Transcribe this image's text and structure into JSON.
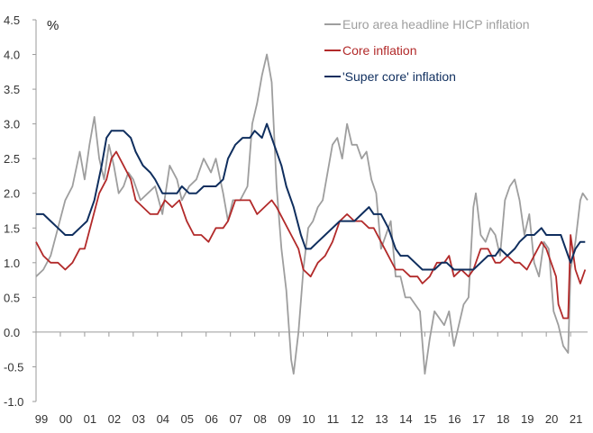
{
  "chart_data": {
    "type": "line",
    "unit_label": "%",
    "ylim": [
      -1.0,
      4.5
    ],
    "xlim": [
      1999.0,
      2021.7
    ],
    "y_ticks": [
      "4.5",
      "4.0",
      "3.5",
      "3.0",
      "2.5",
      "2.0",
      "1.5",
      "1.0",
      "0.5",
      "0.0",
      "-0.5",
      "-1.0"
    ],
    "x_ticks": [
      "99",
      "00",
      "01",
      "02",
      "03",
      "04",
      "05",
      "06",
      "07",
      "08",
      "09",
      "10",
      "11",
      "12",
      "13",
      "14",
      "15",
      "16",
      "17",
      "18",
      "19",
      "20",
      "21"
    ],
    "grid": false,
    "legend_position": "top-right",
    "series": [
      {
        "name": "Euro area headline HICP inflation",
        "color": "#9e9e9e",
        "points": [
          [
            1999.0,
            0.8
          ],
          [
            1999.3,
            0.9
          ],
          [
            1999.6,
            1.1
          ],
          [
            1999.9,
            1.5
          ],
          [
            2000.2,
            1.9
          ],
          [
            2000.5,
            2.1
          ],
          [
            2000.8,
            2.6
          ],
          [
            2001.0,
            2.2
          ],
          [
            2001.2,
            2.7
          ],
          [
            2001.4,
            3.1
          ],
          [
            2001.6,
            2.5
          ],
          [
            2001.8,
            2.2
          ],
          [
            2002.0,
            2.7
          ],
          [
            2002.2,
            2.4
          ],
          [
            2002.4,
            2.0
          ],
          [
            2002.6,
            2.1
          ],
          [
            2002.8,
            2.3
          ],
          [
            2003.0,
            2.2
          ],
          [
            2003.3,
            1.9
          ],
          [
            2003.6,
            2.0
          ],
          [
            2003.9,
            2.1
          ],
          [
            2004.2,
            1.7
          ],
          [
            2004.5,
            2.4
          ],
          [
            2004.8,
            2.2
          ],
          [
            2005.0,
            1.9
          ],
          [
            2005.3,
            2.1
          ],
          [
            2005.6,
            2.2
          ],
          [
            2005.9,
            2.5
          ],
          [
            2006.2,
            2.3
          ],
          [
            2006.4,
            2.5
          ],
          [
            2006.7,
            2.0
          ],
          [
            2006.9,
            1.6
          ],
          [
            2007.1,
            1.9
          ],
          [
            2007.4,
            1.9
          ],
          [
            2007.7,
            2.1
          ],
          [
            2007.9,
            3.0
          ],
          [
            2008.1,
            3.3
          ],
          [
            2008.3,
            3.7
          ],
          [
            2008.5,
            4.0
          ],
          [
            2008.7,
            3.6
          ],
          [
            2008.9,
            2.1
          ],
          [
            2009.1,
            1.2
          ],
          [
            2009.3,
            0.6
          ],
          [
            2009.5,
            -0.4
          ],
          [
            2009.6,
            -0.6
          ],
          [
            2009.8,
            0.0
          ],
          [
            2010.0,
            0.9
          ],
          [
            2010.2,
            1.5
          ],
          [
            2010.4,
            1.6
          ],
          [
            2010.6,
            1.8
          ],
          [
            2010.8,
            1.9
          ],
          [
            2011.0,
            2.3
          ],
          [
            2011.2,
            2.7
          ],
          [
            2011.4,
            2.8
          ],
          [
            2011.6,
            2.5
          ],
          [
            2011.8,
            3.0
          ],
          [
            2012.0,
            2.7
          ],
          [
            2012.2,
            2.7
          ],
          [
            2012.4,
            2.5
          ],
          [
            2012.6,
            2.6
          ],
          [
            2012.8,
            2.2
          ],
          [
            2013.0,
            2.0
          ],
          [
            2013.2,
            1.2
          ],
          [
            2013.4,
            1.4
          ],
          [
            2013.6,
            1.6
          ],
          [
            2013.8,
            0.8
          ],
          [
            2014.0,
            0.8
          ],
          [
            2014.2,
            0.5
          ],
          [
            2014.4,
            0.5
          ],
          [
            2014.6,
            0.4
          ],
          [
            2014.8,
            0.3
          ],
          [
            2015.0,
            -0.6
          ],
          [
            2015.2,
            -0.1
          ],
          [
            2015.4,
            0.3
          ],
          [
            2015.6,
            0.2
          ],
          [
            2015.8,
            0.1
          ],
          [
            2016.0,
            0.3
          ],
          [
            2016.2,
            -0.2
          ],
          [
            2016.4,
            0.1
          ],
          [
            2016.6,
            0.4
          ],
          [
            2016.8,
            0.5
          ],
          [
            2017.0,
            1.8
          ],
          [
            2017.1,
            2.0
          ],
          [
            2017.3,
            1.4
          ],
          [
            2017.5,
            1.3
          ],
          [
            2017.7,
            1.5
          ],
          [
            2017.9,
            1.4
          ],
          [
            2018.1,
            1.1
          ],
          [
            2018.3,
            1.9
          ],
          [
            2018.5,
            2.1
          ],
          [
            2018.7,
            2.2
          ],
          [
            2018.9,
            1.9
          ],
          [
            2019.1,
            1.4
          ],
          [
            2019.3,
            1.7
          ],
          [
            2019.5,
            1.0
          ],
          [
            2019.7,
            0.8
          ],
          [
            2019.9,
            1.3
          ],
          [
            2020.1,
            1.2
          ],
          [
            2020.3,
            0.3
          ],
          [
            2020.5,
            0.1
          ],
          [
            2020.7,
            -0.2
          ],
          [
            2020.9,
            -0.3
          ],
          [
            2021.0,
            0.9
          ],
          [
            2021.2,
            1.3
          ],
          [
            2021.4,
            1.9
          ],
          [
            2021.5,
            2.0
          ],
          [
            2021.7,
            1.9
          ]
        ]
      },
      {
        "name": "Core inflation",
        "color": "#b22a2a",
        "points": [
          [
            1999.0,
            1.3
          ],
          [
            1999.3,
            1.1
          ],
          [
            1999.6,
            1.0
          ],
          [
            1999.9,
            1.0
          ],
          [
            2000.2,
            0.9
          ],
          [
            2000.5,
            1.0
          ],
          [
            2000.8,
            1.2
          ],
          [
            2001.0,
            1.2
          ],
          [
            2001.3,
            1.6
          ],
          [
            2001.6,
            2.0
          ],
          [
            2001.9,
            2.2
          ],
          [
            2002.1,
            2.5
          ],
          [
            2002.3,
            2.6
          ],
          [
            2002.6,
            2.4
          ],
          [
            2002.9,
            2.2
          ],
          [
            2003.1,
            1.9
          ],
          [
            2003.4,
            1.8
          ],
          [
            2003.7,
            1.7
          ],
          [
            2004.0,
            1.7
          ],
          [
            2004.3,
            1.9
          ],
          [
            2004.6,
            1.8
          ],
          [
            2004.9,
            1.9
          ],
          [
            2005.2,
            1.6
          ],
          [
            2005.5,
            1.4
          ],
          [
            2005.8,
            1.4
          ],
          [
            2006.1,
            1.3
          ],
          [
            2006.4,
            1.5
          ],
          [
            2006.7,
            1.5
          ],
          [
            2006.9,
            1.6
          ],
          [
            2007.2,
            1.9
          ],
          [
            2007.5,
            1.9
          ],
          [
            2007.8,
            1.9
          ],
          [
            2008.1,
            1.7
          ],
          [
            2008.4,
            1.8
          ],
          [
            2008.7,
            1.9
          ],
          [
            2008.9,
            1.8
          ],
          [
            2009.2,
            1.6
          ],
          [
            2009.5,
            1.4
          ],
          [
            2009.8,
            1.2
          ],
          [
            2010.0,
            0.9
          ],
          [
            2010.3,
            0.8
          ],
          [
            2010.6,
            1.0
          ],
          [
            2010.9,
            1.1
          ],
          [
            2011.2,
            1.3
          ],
          [
            2011.5,
            1.6
          ],
          [
            2011.8,
            1.7
          ],
          [
            2012.1,
            1.6
          ],
          [
            2012.4,
            1.6
          ],
          [
            2012.7,
            1.5
          ],
          [
            2012.9,
            1.5
          ],
          [
            2013.2,
            1.3
          ],
          [
            2013.5,
            1.1
          ],
          [
            2013.8,
            0.9
          ],
          [
            2014.1,
            0.9
          ],
          [
            2014.4,
            0.8
          ],
          [
            2014.7,
            0.8
          ],
          [
            2014.9,
            0.7
          ],
          [
            2015.2,
            0.8
          ],
          [
            2015.5,
            1.0
          ],
          [
            2015.8,
            1.0
          ],
          [
            2016.0,
            1.1
          ],
          [
            2016.2,
            0.8
          ],
          [
            2016.5,
            0.9
          ],
          [
            2016.8,
            0.8
          ],
          [
            2017.0,
            0.9
          ],
          [
            2017.3,
            1.2
          ],
          [
            2017.6,
            1.2
          ],
          [
            2017.9,
            1.0
          ],
          [
            2018.1,
            1.0
          ],
          [
            2018.4,
            1.1
          ],
          [
            2018.7,
            1.0
          ],
          [
            2018.9,
            1.0
          ],
          [
            2019.2,
            0.9
          ],
          [
            2019.5,
            1.1
          ],
          [
            2019.8,
            1.3
          ],
          [
            2020.0,
            1.2
          ],
          [
            2020.2,
            1.0
          ],
          [
            2020.4,
            0.8
          ],
          [
            2020.5,
            0.4
          ],
          [
            2020.7,
            0.2
          ],
          [
            2020.9,
            0.2
          ],
          [
            2021.0,
            1.4
          ],
          [
            2021.2,
            0.9
          ],
          [
            2021.4,
            0.7
          ],
          [
            2021.6,
            0.9
          ]
        ]
      },
      {
        "name": "'Super core' inflation",
        "color": "#0f2e5e",
        "points": [
          [
            1999.0,
            1.7
          ],
          [
            1999.3,
            1.7
          ],
          [
            1999.6,
            1.6
          ],
          [
            1999.9,
            1.5
          ],
          [
            2000.2,
            1.4
          ],
          [
            2000.5,
            1.4
          ],
          [
            2000.8,
            1.5
          ],
          [
            2001.1,
            1.6
          ],
          [
            2001.4,
            1.9
          ],
          [
            2001.7,
            2.4
          ],
          [
            2001.9,
            2.8
          ],
          [
            2002.1,
            2.9
          ],
          [
            2002.3,
            2.9
          ],
          [
            2002.6,
            2.9
          ],
          [
            2002.9,
            2.8
          ],
          [
            2003.1,
            2.6
          ],
          [
            2003.4,
            2.4
          ],
          [
            2003.7,
            2.3
          ],
          [
            2003.9,
            2.2
          ],
          [
            2004.2,
            2.0
          ],
          [
            2004.5,
            2.0
          ],
          [
            2004.8,
            2.0
          ],
          [
            2005.0,
            2.1
          ],
          [
            2005.3,
            2.0
          ],
          [
            2005.6,
            2.0
          ],
          [
            2005.9,
            2.1
          ],
          [
            2006.2,
            2.1
          ],
          [
            2006.4,
            2.1
          ],
          [
            2006.7,
            2.2
          ],
          [
            2006.9,
            2.5
          ],
          [
            2007.2,
            2.7
          ],
          [
            2007.5,
            2.8
          ],
          [
            2007.8,
            2.8
          ],
          [
            2008.0,
            2.9
          ],
          [
            2008.3,
            2.8
          ],
          [
            2008.5,
            3.0
          ],
          [
            2008.8,
            2.7
          ],
          [
            2009.1,
            2.4
          ],
          [
            2009.3,
            2.1
          ],
          [
            2009.6,
            1.8
          ],
          [
            2009.9,
            1.4
          ],
          [
            2010.1,
            1.2
          ],
          [
            2010.3,
            1.2
          ],
          [
            2010.6,
            1.3
          ],
          [
            2010.9,
            1.4
          ],
          [
            2011.2,
            1.5
          ],
          [
            2011.5,
            1.6
          ],
          [
            2011.8,
            1.6
          ],
          [
            2012.1,
            1.6
          ],
          [
            2012.4,
            1.7
          ],
          [
            2012.7,
            1.8
          ],
          [
            2012.9,
            1.7
          ],
          [
            2013.2,
            1.7
          ],
          [
            2013.5,
            1.5
          ],
          [
            2013.8,
            1.2
          ],
          [
            2014.0,
            1.1
          ],
          [
            2014.3,
            1.1
          ],
          [
            2014.6,
            1.0
          ],
          [
            2014.9,
            0.9
          ],
          [
            2015.1,
            0.9
          ],
          [
            2015.4,
            0.9
          ],
          [
            2015.7,
            1.0
          ],
          [
            2015.9,
            1.0
          ],
          [
            2016.2,
            0.9
          ],
          [
            2016.5,
            0.9
          ],
          [
            2016.8,
            0.9
          ],
          [
            2017.0,
            0.9
          ],
          [
            2017.3,
            1.0
          ],
          [
            2017.6,
            1.1
          ],
          [
            2017.9,
            1.1
          ],
          [
            2018.1,
            1.2
          ],
          [
            2018.4,
            1.1
          ],
          [
            2018.7,
            1.2
          ],
          [
            2018.9,
            1.3
          ],
          [
            2019.2,
            1.4
          ],
          [
            2019.5,
            1.4
          ],
          [
            2019.8,
            1.5
          ],
          [
            2020.0,
            1.4
          ],
          [
            2020.3,
            1.4
          ],
          [
            2020.6,
            1.4
          ],
          [
            2020.9,
            1.1
          ],
          [
            2021.0,
            1.0
          ],
          [
            2021.2,
            1.2
          ],
          [
            2021.4,
            1.3
          ],
          [
            2021.6,
            1.3
          ]
        ]
      }
    ]
  }
}
